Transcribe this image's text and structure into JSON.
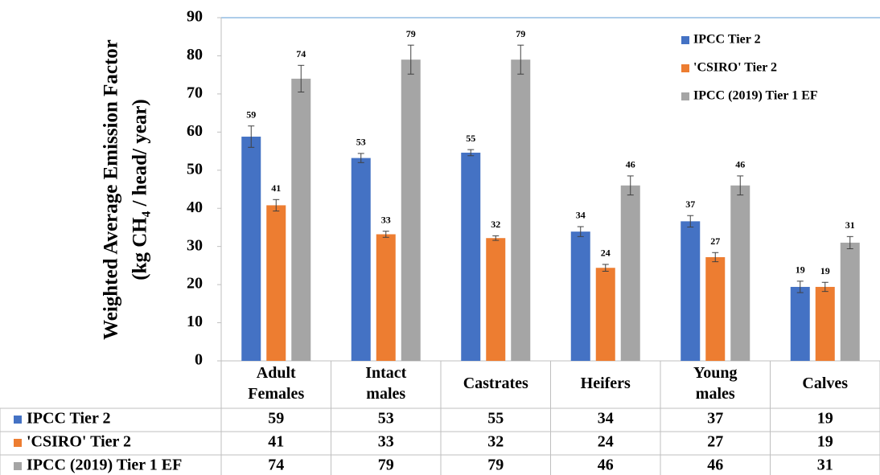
{
  "chart_data": {
    "type": "bar",
    "y_label_lines": [
      "Weighted Average Emission Factor",
      "(kg CH₄ / head/ year)"
    ],
    "categories": [
      "Adult Females",
      "Intact males",
      "Castrates",
      "Heifers",
      "Young males",
      "Calves"
    ],
    "series": [
      {
        "name": "IPCC Tier 2",
        "color": "#4472c4",
        "values": [
          58.8,
          53.2,
          54.6,
          33.9,
          36.6,
          19.4
        ],
        "value_labels": [
          "59",
          "53",
          "55",
          "34",
          "37",
          "19"
        ],
        "errors": [
          2.8,
          1.2,
          0.8,
          1.3,
          1.5,
          1.5
        ]
      },
      {
        "name": "'CSIRO' Tier 2",
        "color": "#ed7d31",
        "values": [
          40.8,
          33.2,
          32.2,
          24.4,
          27.2,
          19.4
        ],
        "value_labels": [
          "41",
          "33",
          "32",
          "24",
          "27",
          "19"
        ],
        "errors": [
          1.5,
          0.8,
          0.6,
          0.9,
          1.2,
          1.2
        ]
      },
      {
        "name": "IPCC (2019) Tier 1 EF",
        "color": "#a5a5a5",
        "values": [
          74,
          79,
          79,
          46,
          46,
          31
        ],
        "value_labels": [
          "74",
          "79",
          "79",
          "46",
          "46",
          "31"
        ],
        "errors": [
          3.5,
          3.8,
          3.8,
          2.5,
          2.5,
          1.6
        ]
      }
    ],
    "ylim": [
      0,
      90
    ],
    "yticks": [
      0,
      10,
      20,
      30,
      40,
      50,
      60,
      70,
      80,
      90
    ],
    "legend": "upper right",
    "data_table": true
  }
}
